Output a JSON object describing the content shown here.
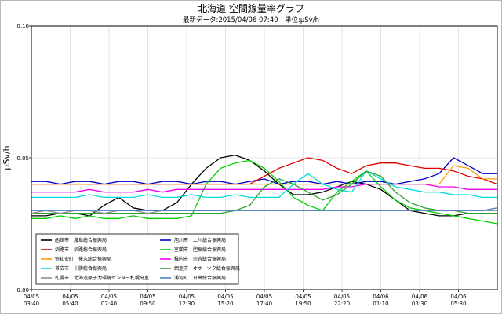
{
  "chart_data": {
    "type": "line",
    "title": "北海道 空間線量率グラフ",
    "subtitle": "最新データ:2015/04/06 07:40　単位:μSv/h",
    "ylabel": "μSv/h",
    "xlabel": "",
    "ylim": [
      0.0,
      0.1
    ],
    "y_ticks": [
      "0.00",
      "0.05",
      "0.10"
    ],
    "grid": true,
    "legend_position": "bottom-left",
    "x_ticks": [
      {
        "date": "04/05",
        "time": "03:40"
      },
      {
        "date": "04/05",
        "time": "05:40"
      },
      {
        "date": "04/05",
        "time": "07:40"
      },
      {
        "date": "04/05",
        "time": "09:50"
      },
      {
        "date": "04/05",
        "time": "12:30"
      },
      {
        "date": "04/05",
        "time": "15:20"
      },
      {
        "date": "04/05",
        "time": "17:40"
      },
      {
        "date": "04/05",
        "time": "19:50"
      },
      {
        "date": "04/05",
        "time": "22:20"
      },
      {
        "date": "04/06",
        "time": "01:10"
      },
      {
        "date": "04/06",
        "time": "03:30"
      },
      {
        "date": "04/06",
        "time": "05:30"
      }
    ],
    "x_range": [
      "04/05 03:40",
      "04/06 07:40"
    ],
    "series": [
      {
        "name": "函館市　渡島総合振興局",
        "color": "#000000",
        "values": [
          0.028,
          0.028,
          0.029,
          0.029,
          0.028,
          0.032,
          0.035,
          0.031,
          0.03,
          0.03,
          0.033,
          0.04,
          0.046,
          0.05,
          0.051,
          0.049,
          0.045,
          0.04,
          0.036,
          0.036,
          0.037,
          0.039,
          0.041,
          0.04,
          0.038,
          0.034,
          0.03,
          0.029,
          0.028,
          0.028,
          0.029,
          0.029,
          0.029
        ]
      },
      {
        "name": "旭川市　上川総合振興局",
        "color": "#0000c8",
        "values": [
          0.041,
          0.041,
          0.04,
          0.041,
          0.041,
          0.04,
          0.041,
          0.041,
          0.04,
          0.041,
          0.041,
          0.04,
          0.041,
          0.041,
          0.04,
          0.041,
          0.042,
          0.04,
          0.041,
          0.041,
          0.04,
          0.041,
          0.04,
          0.041,
          0.041,
          0.04,
          0.041,
          0.042,
          0.044,
          0.05,
          0.047,
          0.044,
          0.044
        ]
      },
      {
        "name": "釧路市　釧路総合振興局",
        "color": "#e00000",
        "values": [
          0.04,
          0.04,
          0.04,
          0.04,
          0.04,
          0.04,
          0.04,
          0.04,
          0.04,
          0.04,
          0.04,
          0.04,
          0.04,
          0.04,
          0.04,
          0.04,
          0.043,
          0.046,
          0.048,
          0.05,
          0.049,
          0.046,
          0.044,
          0.047,
          0.048,
          0.048,
          0.047,
          0.046,
          0.046,
          0.045,
          0.043,
          0.042,
          0.04
        ]
      },
      {
        "name": "室蘭市　胆振総合振興局",
        "color": "#00d000",
        "values": [
          0.027,
          0.027,
          0.028,
          0.027,
          0.028,
          0.027,
          0.027,
          0.028,
          0.027,
          0.027,
          0.027,
          0.028,
          0.04,
          0.046,
          0.048,
          0.049,
          0.046,
          0.041,
          0.035,
          0.032,
          0.03,
          0.037,
          0.041,
          0.045,
          0.039,
          0.034,
          0.031,
          0.03,
          0.029,
          0.028,
          0.027,
          0.026,
          0.025
        ]
      },
      {
        "name": "倶知安町　後志総合振興局",
        "color": "#ff9900",
        "values": [
          0.04,
          0.04,
          0.04,
          0.04,
          0.04,
          0.04,
          0.04,
          0.04,
          0.04,
          0.04,
          0.04,
          0.04,
          0.04,
          0.04,
          0.04,
          0.04,
          0.04,
          0.04,
          0.04,
          0.04,
          0.04,
          0.04,
          0.04,
          0.04,
          0.04,
          0.04,
          0.04,
          0.04,
          0.04,
          0.047,
          0.046,
          0.042,
          0.042
        ]
      },
      {
        "name": "稚内市　宗谷総合振興局",
        "color": "#ee00ee",
        "values": [
          0.037,
          0.037,
          0.037,
          0.037,
          0.038,
          0.037,
          0.037,
          0.037,
          0.038,
          0.037,
          0.038,
          0.038,
          0.038,
          0.038,
          0.038,
          0.038,
          0.038,
          0.038,
          0.038,
          0.038,
          0.038,
          0.039,
          0.039,
          0.04,
          0.04,
          0.04,
          0.04,
          0.04,
          0.039,
          0.039,
          0.038,
          0.038,
          0.038
        ]
      },
      {
        "name": "帯広市　十勝総合振興局",
        "color": "#00dddd",
        "values": [
          0.035,
          0.035,
          0.035,
          0.035,
          0.036,
          0.035,
          0.035,
          0.035,
          0.036,
          0.035,
          0.035,
          0.036,
          0.035,
          0.035,
          0.036,
          0.035,
          0.035,
          0.035,
          0.04,
          0.044,
          0.04,
          0.038,
          0.037,
          0.045,
          0.042,
          0.039,
          0.038,
          0.037,
          0.037,
          0.036,
          0.036,
          0.035,
          0.035
        ]
      },
      {
        "name": "網走市　オホーツク総合振興局",
        "color": "#30a030",
        "values": [
          0.029,
          0.029,
          0.029,
          0.029,
          0.029,
          0.029,
          0.029,
          0.029,
          0.029,
          0.029,
          0.029,
          0.029,
          0.029,
          0.029,
          0.03,
          0.032,
          0.039,
          0.042,
          0.04,
          0.037,
          0.034,
          0.036,
          0.04,
          0.045,
          0.043,
          0.037,
          0.033,
          0.031,
          0.03,
          0.03,
          0.029,
          0.029,
          0.029
        ]
      },
      {
        "name": "札幌市　北海道原子力環境センター札幌分室",
        "color": "#909090",
        "values": [
          0.029,
          0.03,
          0.029,
          0.03,
          0.03,
          0.029,
          0.03,
          0.03,
          0.029,
          0.03,
          0.03,
          0.03,
          0.03,
          0.03,
          0.03,
          0.03,
          0.03,
          0.03,
          0.03,
          0.03,
          0.03,
          0.03,
          0.03,
          0.03,
          0.03,
          0.03,
          0.03,
          0.03,
          0.03,
          0.03,
          0.03,
          0.03,
          0.03
        ]
      },
      {
        "name": "浦河町　日高総合振興局",
        "color": "#5080c0",
        "values": [
          0.03,
          0.03,
          0.03,
          0.03,
          0.03,
          0.03,
          0.03,
          0.03,
          0.03,
          0.03,
          0.03,
          0.03,
          0.03,
          0.03,
          0.03,
          0.03,
          0.03,
          0.03,
          0.03,
          0.03,
          0.03,
          0.03,
          0.03,
          0.03,
          0.03,
          0.03,
          0.03,
          0.03,
          0.03,
          0.03,
          0.03,
          0.03,
          0.031
        ]
      }
    ]
  }
}
